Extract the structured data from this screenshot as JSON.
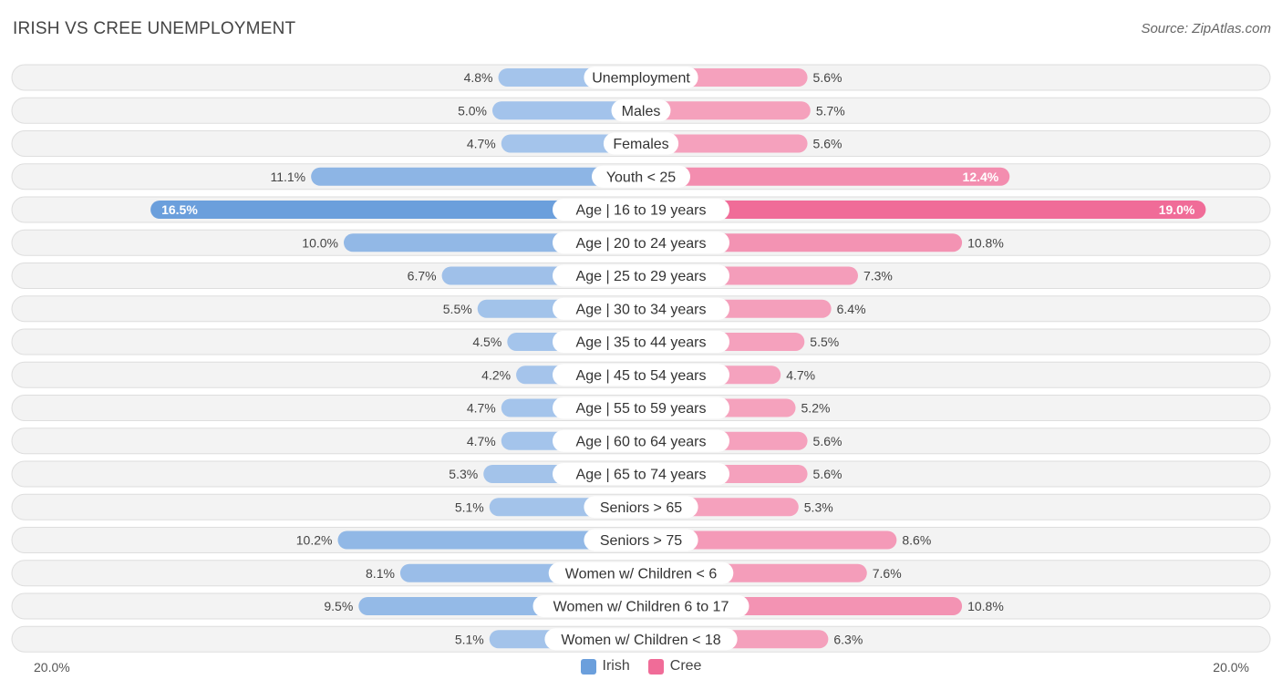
{
  "header": {
    "title": "IRISH VS CREE UNEMPLOYMENT",
    "source": "Source: ZipAtlas.com"
  },
  "axis": {
    "left_label": "20.0%",
    "right_label": "20.0%"
  },
  "legend": {
    "irish_label": "Irish",
    "cree_label": "Cree"
  },
  "colors": {
    "irish": "#6b9fdc",
    "irish_light": "#a9c7ec",
    "cree": "#f06c98",
    "cree_light": "#f5a6c0",
    "row_bg": "#f2f2f2",
    "row_border": "#dedede"
  },
  "chart_data": {
    "type": "bar",
    "orientation": "horizontal-diverging",
    "title": "IRISH VS CREE UNEMPLOYMENT",
    "xlim": [
      -20,
      20
    ],
    "categories": [
      "Unemployment",
      "Males",
      "Females",
      "Youth < 25",
      "Age | 16 to 19 years",
      "Age | 20 to 24 years",
      "Age | 25 to 29 years",
      "Age | 30 to 34 years",
      "Age | 35 to 44 years",
      "Age | 45 to 54 years",
      "Age | 55 to 59 years",
      "Age | 60 to 64 years",
      "Age | 65 to 74 years",
      "Seniors > 65",
      "Seniors > 75",
      "Women w/ Children < 6",
      "Women w/ Children 6 to 17",
      "Women w/ Children < 18"
    ],
    "series": [
      {
        "name": "Irish",
        "values": [
          4.8,
          5.0,
          4.7,
          11.1,
          16.5,
          10.0,
          6.7,
          5.5,
          4.5,
          4.2,
          4.7,
          4.7,
          5.3,
          5.1,
          10.2,
          8.1,
          9.5,
          5.1
        ],
        "labels": [
          "4.8%",
          "5.0%",
          "4.7%",
          "11.1%",
          "16.5%",
          "10.0%",
          "6.7%",
          "5.5%",
          "4.5%",
          "4.2%",
          "4.7%",
          "4.7%",
          "5.3%",
          "5.1%",
          "10.2%",
          "8.1%",
          "9.5%",
          "5.1%"
        ]
      },
      {
        "name": "Cree",
        "values": [
          5.6,
          5.7,
          5.6,
          12.4,
          19.0,
          10.8,
          7.3,
          6.4,
          5.5,
          4.7,
          5.2,
          5.6,
          5.6,
          5.3,
          8.6,
          7.6,
          10.8,
          6.3
        ],
        "labels": [
          "5.6%",
          "5.7%",
          "5.6%",
          "12.4%",
          "19.0%",
          "10.8%",
          "7.3%",
          "6.4%",
          "5.5%",
          "4.7%",
          "5.2%",
          "5.6%",
          "5.6%",
          "5.3%",
          "8.6%",
          "7.6%",
          "10.8%",
          "6.3%"
        ]
      }
    ]
  }
}
